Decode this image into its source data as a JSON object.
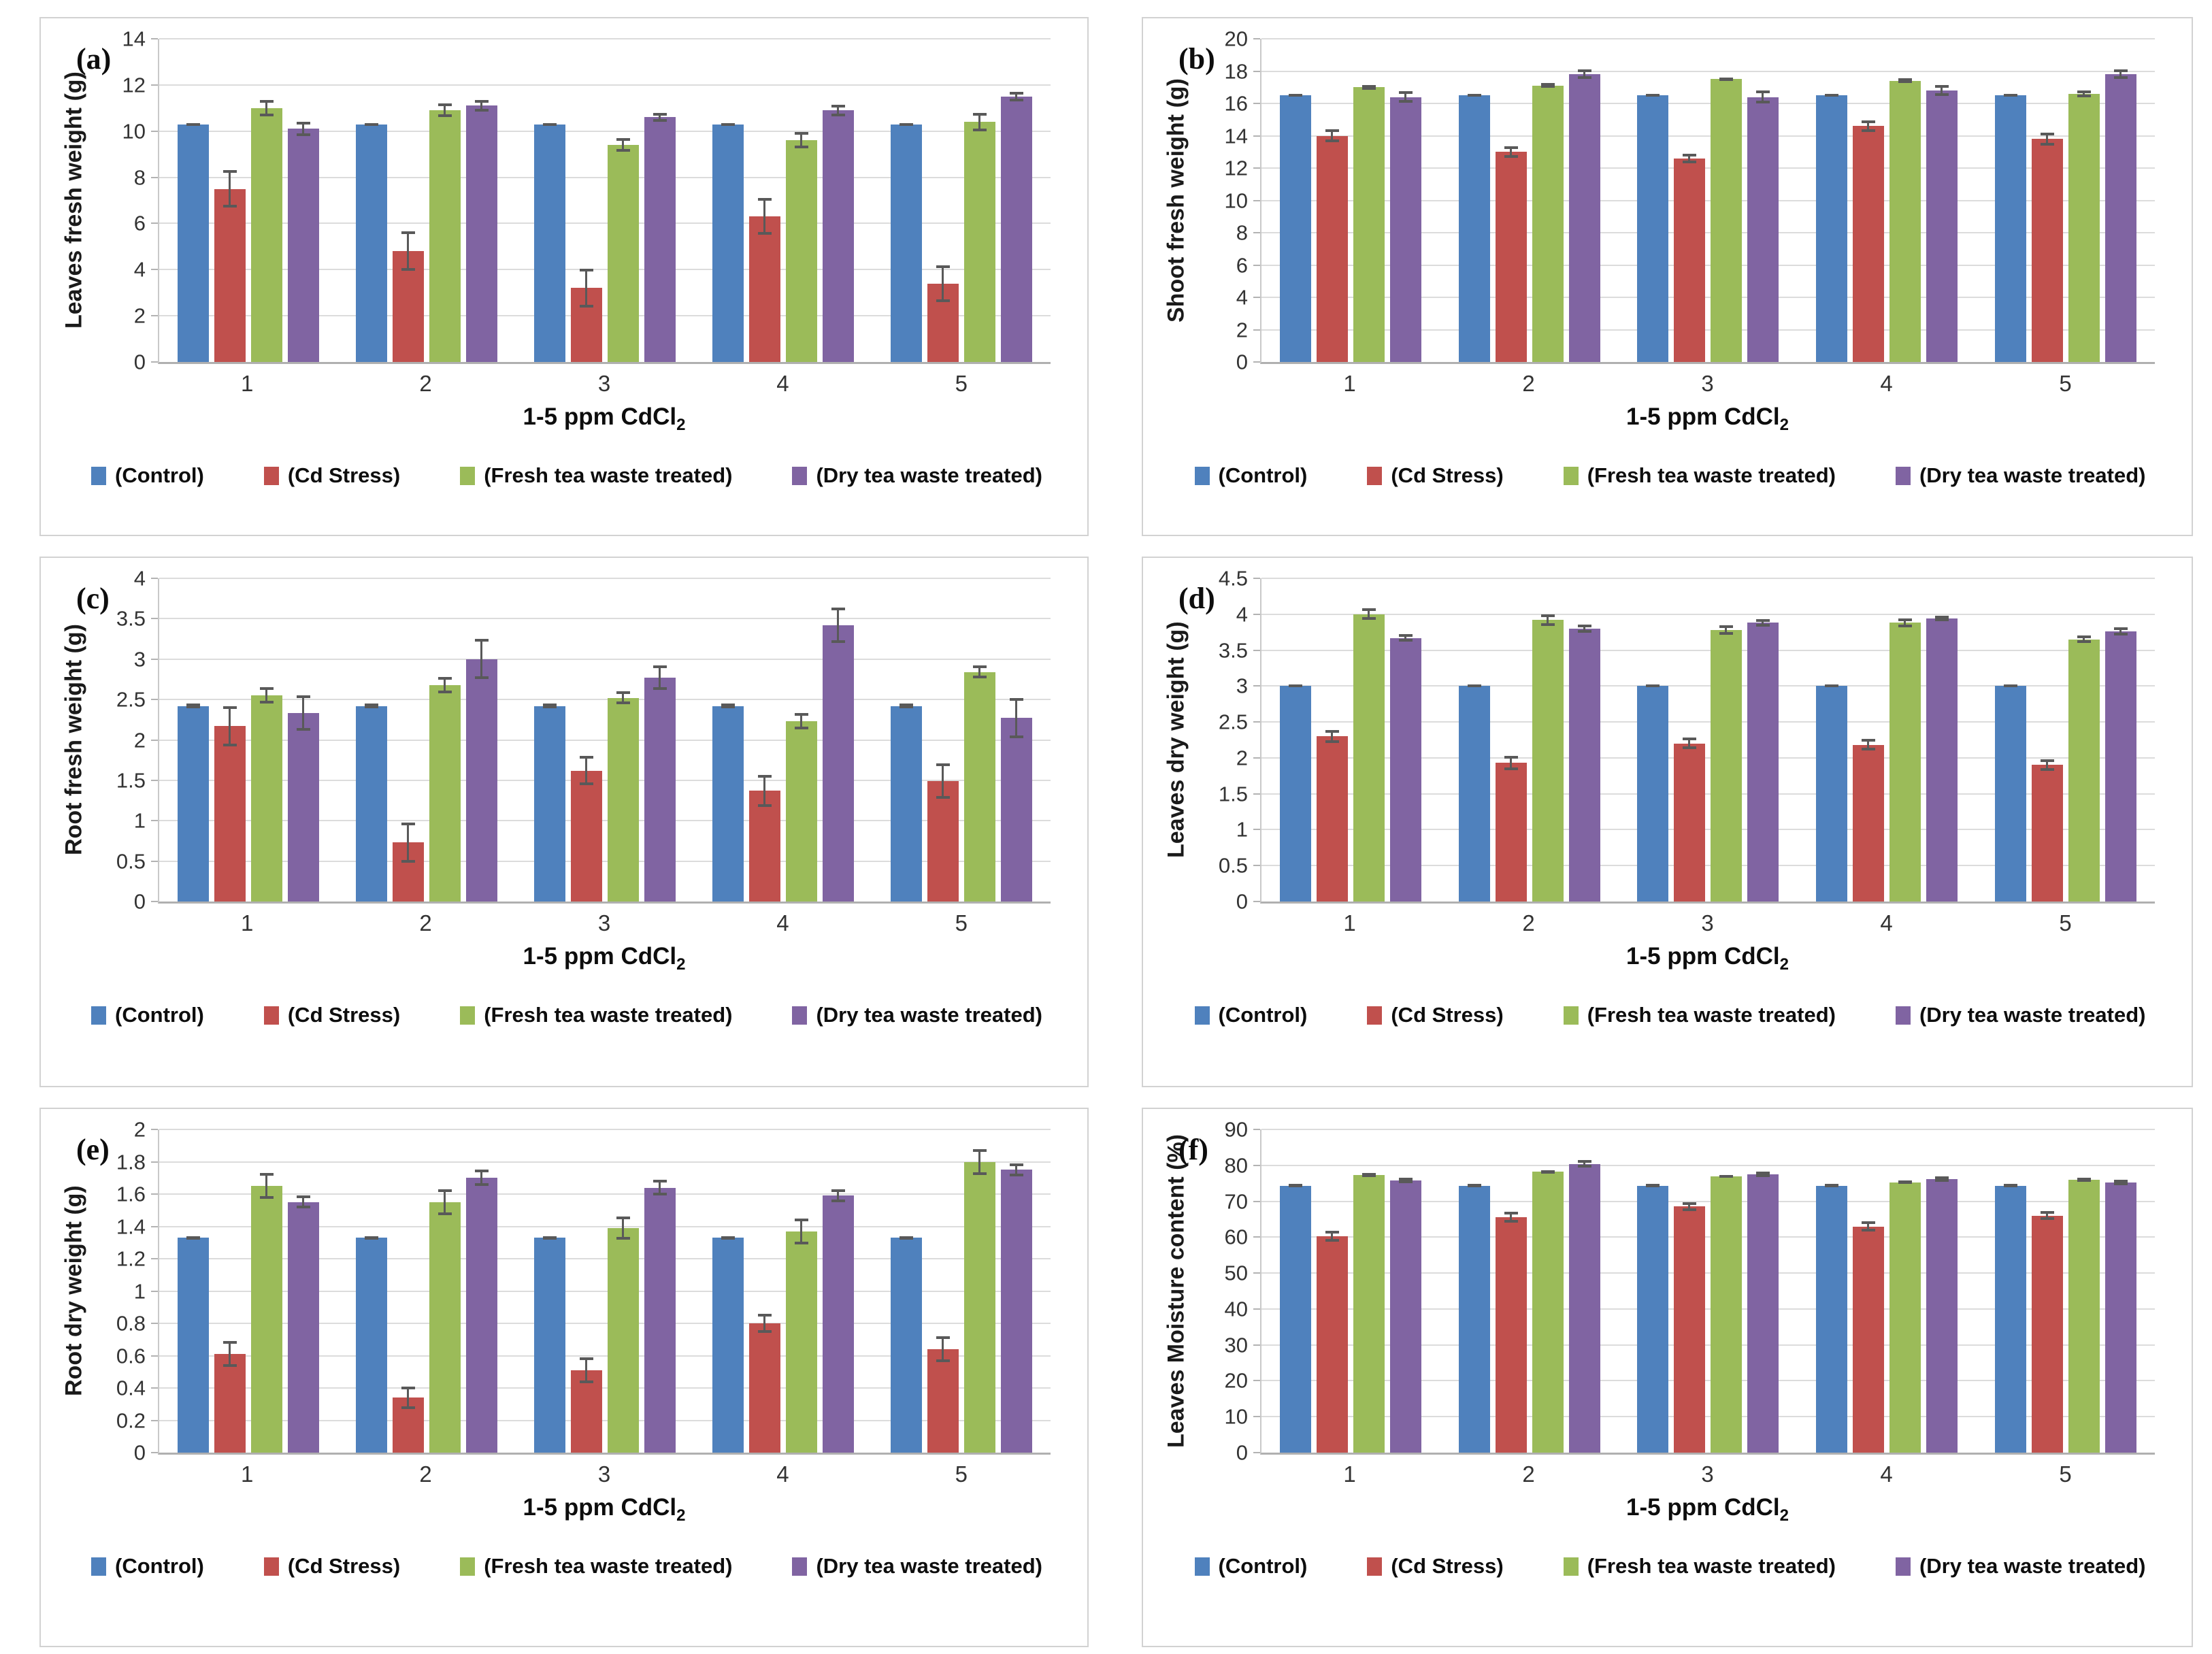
{
  "panel_labels": {
    "a": "(a)",
    "b": "(b)",
    "c": "(c)",
    "d": "(d)",
    "e": "(e)",
    "f": "(f)"
  },
  "chart_data": [
    {
      "type": "bar",
      "panel_label": "(a)",
      "ylabel": "Leaves fresh weight (g)",
      "xlabel_main": "1-5 ppm CdCl",
      "xlabel_sub": "2",
      "categories": [
        "1",
        "2",
        "3",
        "4",
        "5"
      ],
      "ylim": [
        0,
        14
      ],
      "ystep": 2,
      "grid": true,
      "legend_position": "bottom",
      "series": [
        {
          "name": "(Control)",
          "color": "#4f81bd",
          "values": [
            10.3,
            10.3,
            10.3,
            10.3,
            10.3
          ],
          "errors": [
            0.06,
            0.06,
            0.06,
            0.06,
            0.06
          ]
        },
        {
          "name": "(Cd Stress)",
          "color": "#c0504d",
          "values": [
            7.5,
            4.8,
            3.2,
            6.3,
            3.4
          ],
          "errors": [
            0.8,
            0.85,
            0.85,
            0.8,
            0.8
          ]
        },
        {
          "name": "(Fresh tea waste treated)",
          "color": "#9bbb59",
          "values": [
            11.0,
            10.9,
            9.4,
            9.6,
            10.4
          ],
          "errors": [
            0.35,
            0.3,
            0.3,
            0.35,
            0.4
          ]
        },
        {
          "name": "(Dry tea waste treated)",
          "color": "#8064a2",
          "values": [
            10.1,
            11.1,
            10.6,
            10.9,
            11.5
          ],
          "errors": [
            0.3,
            0.25,
            0.2,
            0.25,
            0.2
          ]
        }
      ]
    },
    {
      "type": "bar",
      "panel_label": "(b)",
      "ylabel": "Shoot fresh weight (g)",
      "xlabel_main": "1-5 ppm CdCl",
      "xlabel_sub": "2",
      "categories": [
        "1",
        "2",
        "3",
        "4",
        "5"
      ],
      "ylim": [
        0,
        20
      ],
      "ystep": 2,
      "grid": true,
      "legend_position": "bottom",
      "series": [
        {
          "name": "(Control)",
          "color": "#4f81bd",
          "values": [
            16.5,
            16.5,
            16.5,
            16.5,
            16.5
          ],
          "errors": [
            0.08,
            0.08,
            0.08,
            0.08,
            0.08
          ]
        },
        {
          "name": "(Cd Stress)",
          "color": "#c0504d",
          "values": [
            14.0,
            13.0,
            12.6,
            14.6,
            13.8
          ],
          "errors": [
            0.4,
            0.35,
            0.3,
            0.35,
            0.4
          ]
        },
        {
          "name": "(Fresh tea waste treated)",
          "color": "#9bbb59",
          "values": [
            17.0,
            17.1,
            17.5,
            17.4,
            16.6
          ],
          "errors": [
            0.15,
            0.15,
            0.12,
            0.15,
            0.2
          ]
        },
        {
          "name": "(Dry tea waste treated)",
          "color": "#8064a2",
          "values": [
            16.4,
            17.8,
            16.4,
            16.8,
            17.8
          ],
          "errors": [
            0.35,
            0.3,
            0.4,
            0.35,
            0.3
          ]
        }
      ]
    },
    {
      "type": "bar",
      "panel_label": "(c)",
      "ylabel": "Root fresh weight (g)",
      "xlabel_main": "1-5 ppm CdCl",
      "xlabel_sub": "2",
      "categories": [
        "1",
        "2",
        "3",
        "4",
        "5"
      ],
      "ylim": [
        0,
        4
      ],
      "ystep": 0.5,
      "grid": true,
      "legend_position": "bottom",
      "series": [
        {
          "name": "(Control)",
          "color": "#4f81bd",
          "values": [
            2.42,
            2.42,
            2.42,
            2.42,
            2.42
          ],
          "errors": [
            0.03,
            0.03,
            0.03,
            0.03,
            0.03
          ]
        },
        {
          "name": "(Cd Stress)",
          "color": "#c0504d",
          "values": [
            2.17,
            0.73,
            1.62,
            1.37,
            1.49
          ],
          "errors": [
            0.25,
            0.25,
            0.18,
            0.2,
            0.22
          ]
        },
        {
          "name": "(Fresh tea waste treated)",
          "color": "#9bbb59",
          "values": [
            2.55,
            2.68,
            2.52,
            2.23,
            2.84
          ],
          "errors": [
            0.1,
            0.1,
            0.08,
            0.1,
            0.08
          ]
        },
        {
          "name": "(Dry tea waste treated)",
          "color": "#8064a2",
          "values": [
            2.33,
            3.0,
            2.77,
            3.42,
            2.27
          ],
          "errors": [
            0.22,
            0.25,
            0.15,
            0.22,
            0.25
          ]
        }
      ]
    },
    {
      "type": "bar",
      "panel_label": "(d)",
      "ylabel": "Leaves dry weight (g)",
      "xlabel_main": "1-5 ppm CdCl",
      "xlabel_sub": "2",
      "categories": [
        "1",
        "2",
        "3",
        "4",
        "5"
      ],
      "ylim": [
        0,
        4.5
      ],
      "ystep": 0.5,
      "grid": true,
      "legend_position": "bottom",
      "series": [
        {
          "name": "(Control)",
          "color": "#4f81bd",
          "values": [
            3.0,
            3.0,
            3.0,
            3.0,
            3.0
          ],
          "errors": [
            0.02,
            0.02,
            0.02,
            0.02,
            0.02
          ]
        },
        {
          "name": "(Cd Stress)",
          "color": "#c0504d",
          "values": [
            2.3,
            1.93,
            2.2,
            2.18,
            1.9
          ],
          "errors": [
            0.09,
            0.1,
            0.08,
            0.08,
            0.08
          ]
        },
        {
          "name": "(Fresh tea waste treated)",
          "color": "#9bbb59",
          "values": [
            4.0,
            3.92,
            3.78,
            3.88,
            3.65
          ],
          "errors": [
            0.08,
            0.08,
            0.07,
            0.06,
            0.05
          ]
        },
        {
          "name": "(Dry tea waste treated)",
          "color": "#8064a2",
          "values": [
            3.67,
            3.8,
            3.88,
            3.94,
            3.76
          ],
          "errors": [
            0.05,
            0.06,
            0.05,
            0.04,
            0.06
          ]
        }
      ]
    },
    {
      "type": "bar",
      "panel_label": "(e)",
      "ylabel": "Root dry weight (g)",
      "xlabel_main": "1-5 ppm CdCl",
      "xlabel_sub": "2",
      "categories": [
        "1",
        "2",
        "3",
        "4",
        "5"
      ],
      "ylim": [
        0,
        2
      ],
      "ystep": 0.2,
      "grid": true,
      "legend_position": "bottom",
      "series": [
        {
          "name": "(Control)",
          "color": "#4f81bd",
          "values": [
            1.33,
            1.33,
            1.33,
            1.33,
            1.33
          ],
          "errors": [
            0.01,
            0.01,
            0.01,
            0.01,
            0.01
          ]
        },
        {
          "name": "(Cd Stress)",
          "color": "#c0504d",
          "values": [
            0.61,
            0.34,
            0.51,
            0.8,
            0.64
          ],
          "errors": [
            0.08,
            0.07,
            0.08,
            0.06,
            0.08
          ]
        },
        {
          "name": "(Fresh tea waste treated)",
          "color": "#9bbb59",
          "values": [
            1.65,
            1.55,
            1.39,
            1.37,
            1.8
          ],
          "errors": [
            0.08,
            0.08,
            0.07,
            0.08,
            0.08
          ]
        },
        {
          "name": "(Dry tea waste treated)",
          "color": "#8064a2",
          "values": [
            1.55,
            1.7,
            1.64,
            1.59,
            1.75
          ],
          "errors": [
            0.04,
            0.05,
            0.05,
            0.04,
            0.04
          ]
        }
      ]
    },
    {
      "type": "bar",
      "panel_label": "(f)",
      "ylabel": "Leaves Moisture content (%)",
      "xlabel_main": "1-5 ppm CdCl",
      "xlabel_sub": "2",
      "categories": [
        "1",
        "2",
        "3",
        "4",
        "5"
      ],
      "ylim": [
        0,
        90
      ],
      "ystep": 10,
      "grid": true,
      "legend_position": "bottom",
      "series": [
        {
          "name": "(Control)",
          "color": "#4f81bd",
          "values": [
            74.3,
            74.3,
            74.3,
            74.3,
            74.3
          ],
          "errors": [
            0.3,
            0.3,
            0.3,
            0.3,
            0.3
          ]
        },
        {
          "name": "(Cd Stress)",
          "color": "#c0504d",
          "values": [
            60.3,
            65.6,
            68.5,
            63.0,
            66.0
          ],
          "errors": [
            1.5,
            1.5,
            1.2,
            1.5,
            1.2
          ]
        },
        {
          "name": "(Fresh tea waste treated)",
          "color": "#9bbb59",
          "values": [
            77.3,
            78.2,
            76.9,
            75.3,
            76.0
          ],
          "errors": [
            0.5,
            0.5,
            0.4,
            0.4,
            0.5
          ]
        },
        {
          "name": "(Dry tea waste treated)",
          "color": "#8064a2",
          "values": [
            75.8,
            80.4,
            77.5,
            76.2,
            75.2
          ],
          "errors": [
            0.8,
            1.0,
            0.8,
            0.8,
            0.8
          ]
        }
      ]
    }
  ]
}
